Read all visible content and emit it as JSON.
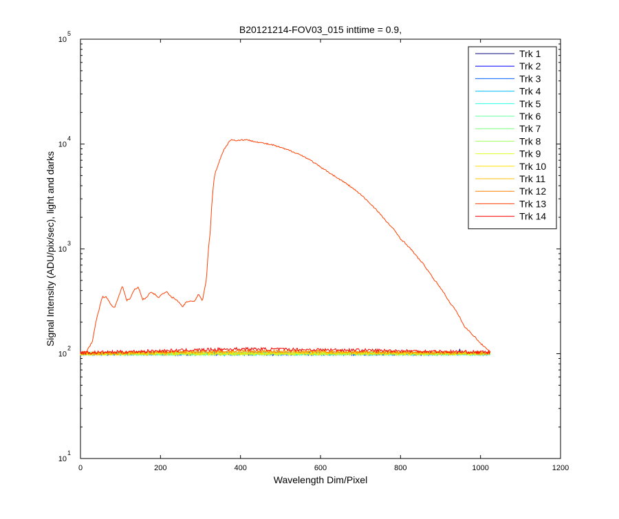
{
  "chart_data": {
    "type": "line",
    "title": "B20121214-FOV03_015 inttime = 0.9,",
    "xlabel": "Wavelength Dim/Pixel",
    "ylabel": "Signal Intensity (ADU/pix/sec), light and darks",
    "xlim": [
      0,
      1200
    ],
    "ylim": [
      10,
      100000
    ],
    "yscale": "log",
    "x_ticks": [
      0,
      200,
      400,
      600,
      800,
      1000,
      1200
    ],
    "y_ticks": [
      {
        "value": 10,
        "base": "10",
        "exp": "1"
      },
      {
        "value": 100,
        "base": "10",
        "exp": "2"
      },
      {
        "value": 1000,
        "base": "10",
        "exp": "3"
      },
      {
        "value": 10000,
        "base": "10",
        "exp": "4"
      },
      {
        "value": 100000,
        "base": "10",
        "exp": "5"
      }
    ],
    "grid": false,
    "legend_position": "top-right",
    "series": [
      {
        "name": "Trk 1",
        "color": "#00007f",
        "x": [
          0,
          1024
        ],
        "y": [
          100,
          100
        ]
      },
      {
        "name": "Trk 2",
        "color": "#0000ff",
        "x": [
          0,
          1024
        ],
        "y": [
          100,
          100
        ]
      },
      {
        "name": "Trk 3",
        "color": "#005fff",
        "x": [
          0,
          1024
        ],
        "y": [
          100,
          100
        ]
      },
      {
        "name": "Trk 4",
        "color": "#00bfff",
        "x": [
          0,
          1024
        ],
        "y": [
          100,
          100
        ]
      },
      {
        "name": "Trk 5",
        "color": "#1fffdf",
        "x": [
          0,
          1024
        ],
        "y": [
          100,
          100
        ]
      },
      {
        "name": "Trk 6",
        "color": "#5fff9f",
        "x": [
          0,
          1024
        ],
        "y": [
          100,
          100
        ]
      },
      {
        "name": "Trk 7",
        "color": "#7fff7f",
        "x": [
          0,
          1024
        ],
        "y": [
          100,
          100
        ]
      },
      {
        "name": "Trk 8",
        "color": "#9fff5f",
        "x": [
          0,
          1024
        ],
        "y": [
          100,
          100
        ]
      },
      {
        "name": "Trk 9",
        "color": "#dfff1f",
        "x": [
          0,
          1024
        ],
        "y": [
          100,
          100
        ]
      },
      {
        "name": "Trk 10",
        "color": "#ffdf00",
        "x": [
          0,
          1024
        ],
        "y": [
          100,
          101
        ]
      },
      {
        "name": "Trk 11",
        "color": "#ffbf00",
        "x": [
          0,
          100,
          400,
          700,
          1024
        ],
        "y": [
          100,
          101,
          104,
          103,
          101
        ]
      },
      {
        "name": "Trk 12",
        "color": "#ff7f00",
        "x": [
          0,
          100,
          400,
          700,
          1024
        ],
        "y": [
          101,
          102,
          106,
          104,
          102
        ]
      },
      {
        "name": "Trk 13",
        "color": "#ff3f00",
        "x": [
          0,
          15,
          30,
          45,
          55,
          65,
          75,
          85,
          95,
          105,
          115,
          125,
          135,
          145,
          155,
          165,
          175,
          185,
          195,
          205,
          215,
          225,
          235,
          245,
          255,
          265,
          275,
          285,
          295,
          305,
          315,
          325,
          335,
          345,
          360,
          375,
          390,
          410,
          430,
          450,
          480,
          510,
          540,
          570,
          600,
          640,
          680,
          720,
          760,
          800,
          840,
          880,
          920,
          960,
          1000,
          1024
        ],
        "y": [
          102,
          105,
          130,
          250,
          350,
          345,
          300,
          270,
          350,
          440,
          320,
          340,
          410,
          430,
          330,
          340,
          390,
          370,
          345,
          370,
          390,
          350,
          340,
          310,
          280,
          310,
          320,
          315,
          370,
          320,
          500,
          1500,
          5000,
          6500,
          9000,
          11000,
          10800,
          11000,
          10700,
          10300,
          9800,
          9000,
          8200,
          7200,
          6000,
          4800,
          3800,
          2800,
          1900,
          1250,
          850,
          530,
          320,
          180,
          125,
          105
        ]
      },
      {
        "name": "Trk 14",
        "color": "#ff0000",
        "x": [
          0,
          100,
          400,
          700,
          1024
        ],
        "y": [
          102,
          104,
          111,
          108,
          103
        ]
      }
    ]
  }
}
